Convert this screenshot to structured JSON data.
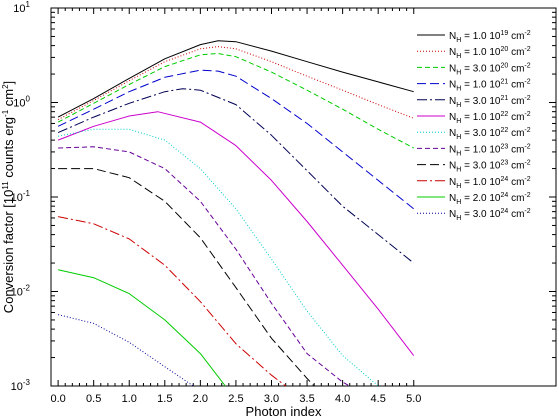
{
  "chart_data": {
    "type": "line",
    "xlabel": "Photon index",
    "ylabel_parts": [
      "Conversion factor [10",
      "11",
      " counts erg",
      "-1",
      " cm",
      "2",
      "]"
    ],
    "ylabel": "Conversion factor [10^11 counts erg^-1 cm^2]",
    "xlim": [
      -0.1,
      7.0
    ],
    "ylim": [
      0.001,
      10
    ],
    "yscale": "log",
    "x_ticks": [
      "0.0",
      "0.5",
      "1.0",
      "1.5",
      "2.0",
      "2.5",
      "3.0",
      "3.5",
      "4.0",
      "4.5",
      "5.0"
    ],
    "x_tick_values": [
      0,
      0.5,
      1,
      1.5,
      2,
      2.5,
      3,
      3.5,
      4,
      4.5,
      5
    ],
    "y_ticks": [
      {
        "value": 10,
        "base": "10",
        "exp": "1"
      },
      {
        "value": 1,
        "base": "10",
        "exp": "0"
      },
      {
        "value": 0.1,
        "base": "10",
        "exp": "-1"
      },
      {
        "value": 0.01,
        "base": "10",
        "exp": "-2"
      },
      {
        "value": 0.001,
        "base": "10",
        "exp": "-3"
      }
    ],
    "legend_position": "top-right",
    "series": [
      {
        "name": "N_H = 1.0 10^19 cm^-2",
        "mantissa": "1.0",
        "exp": "19",
        "color": "#000000",
        "dash": "",
        "x": [
          0,
          0.5,
          1,
          1.5,
          2,
          2.25,
          2.5,
          3,
          3.5,
          4,
          4.5,
          5
        ],
        "y": [
          0.7,
          1.1,
          1.8,
          2.9,
          4.1,
          4.5,
          4.4,
          3.5,
          2.7,
          2.1,
          1.65,
          1.3
        ]
      },
      {
        "name": "N_H = 1.0 10^20 cm^-2",
        "mantissa": "1.0",
        "exp": "20",
        "color": "#cc0000",
        "dash": "1,2",
        "x": [
          0,
          0.5,
          1,
          1.5,
          2,
          2.25,
          2.5,
          3,
          3.5,
          4,
          4.5,
          5
        ],
        "y": [
          0.66,
          1.05,
          1.7,
          2.7,
          3.7,
          3.9,
          3.7,
          2.7,
          1.9,
          1.35,
          0.95,
          0.68
        ]
      },
      {
        "name": "N_H = 3.0 10^20 cm^-2",
        "mantissa": "3.0",
        "exp": "20",
        "color": "#00cc00",
        "dash": "5,3",
        "x": [
          0,
          0.5,
          1,
          1.5,
          2,
          2.25,
          2.5,
          3,
          3.5,
          4,
          4.5,
          5
        ],
        "y": [
          0.62,
          0.98,
          1.55,
          2.4,
          3.2,
          3.3,
          3.05,
          2.1,
          1.35,
          0.85,
          0.52,
          0.33
        ]
      },
      {
        "name": "N_H = 1.0 10^21 cm^-2",
        "mantissa": "1.0",
        "exp": "21",
        "color": "#0000cc",
        "dash": "9,4",
        "x": [
          0,
          0.5,
          1,
          1.5,
          2,
          2.25,
          2.5,
          3,
          3.5,
          4,
          4.5,
          5
        ],
        "y": [
          0.56,
          0.85,
          1.3,
          1.85,
          2.2,
          2.15,
          1.9,
          1.1,
          0.6,
          0.3,
          0.15,
          0.075
        ]
      },
      {
        "name": "N_H = 3.0 10^21 cm^-2",
        "mantissa": "3.0",
        "exp": "21",
        "color": "#000055",
        "dash": "10,3,2,3",
        "x": [
          0,
          0.5,
          1,
          1.5,
          1.75,
          2,
          2.5,
          3,
          3.5,
          4,
          4.5,
          5
        ],
        "y": [
          0.48,
          0.7,
          0.98,
          1.3,
          1.4,
          1.35,
          0.95,
          0.45,
          0.19,
          0.08,
          0.04,
          0.02
        ]
      },
      {
        "name": "N_H = 1.0 10^22 cm^-2",
        "mantissa": "1.0",
        "exp": "22",
        "color": "#cc00cc",
        "dash": "",
        "x": [
          0,
          0.5,
          1,
          1.4,
          2,
          2.5,
          3,
          3.5,
          4,
          4.5,
          5
        ],
        "y": [
          0.4,
          0.56,
          0.72,
          0.8,
          0.62,
          0.35,
          0.15,
          0.055,
          0.019,
          0.0065,
          0.0021
        ]
      },
      {
        "name": "N_H = 3.0 10^22 cm^-2",
        "mantissa": "3.0",
        "exp": "22",
        "color": "#00cccc",
        "dash": "1,2",
        "x": [
          0,
          0.5,
          1,
          1.5,
          2,
          2.5,
          3,
          3.5,
          4,
          4.5
        ],
        "y": [
          0.44,
          0.52,
          0.52,
          0.4,
          0.2,
          0.075,
          0.022,
          0.0062,
          0.0021,
          0.001
        ]
      },
      {
        "name": "N_H = 1.0 10^23 cm^-2",
        "mantissa": "1.0",
        "exp": "23",
        "color": "#660099",
        "dash": "5,3",
        "x": [
          0,
          0.5,
          1,
          1.5,
          2,
          2.5,
          3,
          3.5,
          4,
          4.1
        ],
        "y": [
          0.33,
          0.34,
          0.3,
          0.2,
          0.09,
          0.028,
          0.0075,
          0.0022,
          0.0011,
          0.001
        ]
      },
      {
        "name": "N_H = 3.0 10^23 cm^-2",
        "mantissa": "3.0",
        "exp": "23",
        "color": "#000000",
        "dash": "9,4",
        "x": [
          0,
          0.5,
          1,
          1.5,
          2,
          2.5,
          3,
          3.5,
          3.6
        ],
        "y": [
          0.2,
          0.2,
          0.16,
          0.09,
          0.037,
          0.011,
          0.0032,
          0.0012,
          0.001
        ]
      },
      {
        "name": "N_H = 1.0 10^24 cm^-2",
        "mantissa": "1.0",
        "exp": "24",
        "color": "#cc0000",
        "dash": "10,3,2,3",
        "x": [
          0,
          0.5,
          1,
          1.5,
          2,
          2.5,
          3,
          3.2
        ],
        "y": [
          0.062,
          0.052,
          0.036,
          0.019,
          0.0078,
          0.0028,
          0.0013,
          0.001
        ]
      },
      {
        "name": "N_H = 2.0 10^24 cm^-2",
        "mantissa": "2.0",
        "exp": "24",
        "color": "#00cc00",
        "dash": "",
        "x": [
          0,
          0.5,
          1,
          1.5,
          2,
          2.35
        ],
        "y": [
          0.017,
          0.014,
          0.0095,
          0.005,
          0.0022,
          0.001
        ]
      },
      {
        "name": "N_H = 3.0 10^24 cm^-2",
        "mantissa": "3.0",
        "exp": "24",
        "color": "#000099",
        "dash": "1,2",
        "x": [
          0,
          0.5,
          1,
          1.5,
          1.9
        ],
        "y": [
          0.0057,
          0.0046,
          0.0029,
          0.0016,
          0.001
        ]
      }
    ]
  }
}
